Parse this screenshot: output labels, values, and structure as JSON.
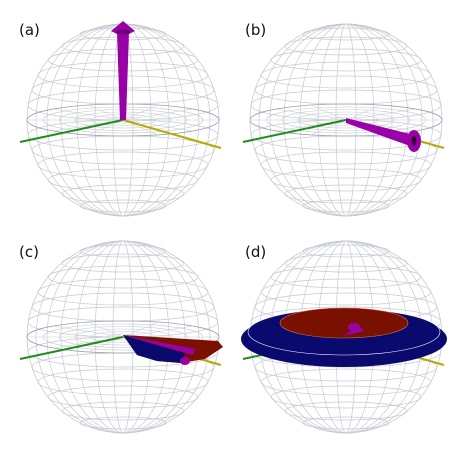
{
  "panels": [
    {
      "id": "a",
      "label": "(a)"
    },
    {
      "id": "b",
      "label": "(b)"
    },
    {
      "id": "c",
      "label": "(c)"
    },
    {
      "id": "d",
      "label": "(d)"
    }
  ],
  "colors": {
    "sphere_grid": "#c5cad2",
    "sphere_grid_dark": "#9aa3b4",
    "axis_green": "#1e8c1e",
    "axis_yellow": "#b8a800",
    "vector_purple": "#9a00a8",
    "surface_blue": "#0a0a6e",
    "surface_red": "#7a1000"
  }
}
